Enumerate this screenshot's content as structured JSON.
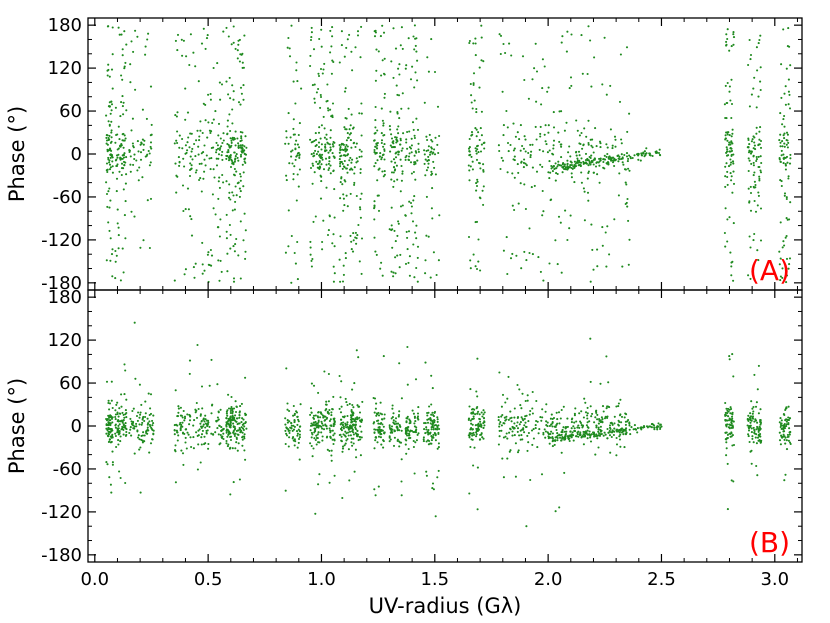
{
  "chart_data": {
    "type": "scatter",
    "marker_color": "#1e8a1e",
    "label_color": "#ff0000",
    "xlabel": "UV-radius (Gλ)",
    "xlim": [
      -0.03,
      3.12
    ],
    "x_ticks": [
      0.0,
      0.5,
      1.0,
      1.5,
      2.0,
      2.5,
      3.0
    ],
    "x_tick_labels": [
      "0.0",
      "0.5",
      "1.0",
      "1.5",
      "2.0",
      "2.5",
      "3.0"
    ],
    "x_minor_step": 0.1,
    "panels": [
      {
        "id": "A",
        "label": "(A)",
        "ylabel": "Phase (°)",
        "ylim": [
          -190,
          190
        ],
        "y_ticks": [
          -180,
          -120,
          -60,
          0,
          60,
          120,
          180
        ],
        "y_tick_labels": [
          "-180",
          "-120",
          "-60",
          "0",
          "60",
          "120",
          "180"
        ],
        "description_of_data": "phases widely scattered across -180..180 with concentration near 0",
        "points": []
      },
      {
        "id": "B",
        "label": "(B)",
        "ylabel": "Phase (°)",
        "ylim": [
          -190,
          190
        ],
        "y_ticks": [
          -180,
          -120,
          -60,
          0,
          60,
          120,
          180
        ],
        "y_tick_labels": [
          "-180",
          "-120",
          "-60",
          "0",
          "60",
          "120",
          "180"
        ],
        "points": []
      }
    ],
    "uv_coverage_bands": [
      [
        0.05,
        0.08
      ],
      [
        0.09,
        0.14
      ],
      [
        0.15,
        0.26
      ],
      [
        0.35,
        0.47
      ],
      [
        0.47,
        0.57
      ],
      [
        0.58,
        0.62
      ],
      [
        0.62,
        0.67
      ],
      [
        0.84,
        0.91
      ],
      [
        0.95,
        1.0
      ],
      [
        1.0,
        1.06
      ],
      [
        1.08,
        1.12
      ],
      [
        1.12,
        1.18
      ],
      [
        1.23,
        1.28
      ],
      [
        1.3,
        1.36
      ],
      [
        1.37,
        1.43
      ],
      [
        1.45,
        1.52
      ],
      [
        1.65,
        1.72
      ],
      [
        1.78,
        1.9
      ],
      [
        1.9,
        2.05
      ],
      [
        2.05,
        2.2
      ],
      [
        2.2,
        2.36
      ],
      [
        2.78,
        2.82
      ],
      [
        2.88,
        2.94
      ],
      [
        3.02,
        3.07
      ]
    ]
  }
}
